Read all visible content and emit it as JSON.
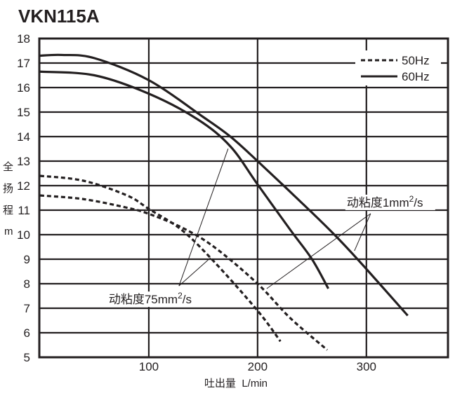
{
  "chart_data": {
    "type": "line",
    "title": "VKN115A",
    "xlabel": "吐出量  L/min",
    "ylabel": [
      "全",
      "扬",
      "程",
      "m"
    ],
    "xlim": [
      0,
      375
    ],
    "ylim": [
      5,
      18
    ],
    "xticks": [
      100,
      200,
      300
    ],
    "yticks": [
      5,
      6,
      7,
      8,
      9,
      10,
      11,
      12,
      13,
      14,
      15,
      16,
      17,
      18
    ],
    "grid": true,
    "legend": {
      "placement": "top-right",
      "entries": [
        {
          "label": "50Hz",
          "style": "dashed"
        },
        {
          "label": "60Hz",
          "style": "solid"
        }
      ]
    },
    "series": [
      {
        "name": "60Hz 1mm2/s",
        "style": "solid",
        "points": [
          [
            0,
            17.3
          ],
          [
            20,
            17.33
          ],
          [
            50,
            17.2
          ],
          [
            100,
            16.3
          ],
          [
            150,
            14.8
          ],
          [
            175,
            14.0
          ],
          [
            200,
            13.0
          ],
          [
            250,
            10.9
          ],
          [
            275,
            9.8
          ],
          [
            300,
            8.6
          ],
          [
            338,
            6.7
          ]
        ]
      },
      {
        "name": "60Hz 75mm2/s",
        "style": "solid",
        "points": [
          [
            0,
            16.65
          ],
          [
            50,
            16.5
          ],
          [
            100,
            15.75
          ],
          [
            145,
            14.7
          ],
          [
            175,
            13.6
          ],
          [
            200,
            12.05
          ],
          [
            230,
            10.2
          ],
          [
            250,
            9.0
          ],
          [
            265,
            7.8
          ]
        ]
      },
      {
        "name": "50Hz 75mm2/s",
        "style": "dashed",
        "points": [
          [
            0,
            12.4
          ],
          [
            40,
            12.2
          ],
          [
            80,
            11.6
          ],
          [
            100,
            11.05
          ],
          [
            130,
            10.2
          ],
          [
            160,
            8.9
          ],
          [
            200,
            6.9
          ],
          [
            221,
            5.65
          ]
        ]
      },
      {
        "name": "50Hz 1mm2/s",
        "style": "dashed",
        "points": [
          [
            0,
            11.6
          ],
          [
            40,
            11.45
          ],
          [
            80,
            11.1
          ],
          [
            100,
            10.85
          ],
          [
            130,
            10.3
          ],
          [
            160,
            9.5
          ],
          [
            200,
            8.0
          ],
          [
            230,
            6.6
          ],
          [
            264,
            5.3
          ]
        ]
      }
    ],
    "annotations": [
      {
        "prefix": "动粘度75mm",
        "sup": "2",
        "suffix": "/s",
        "origin": [
          127.7,
          7.91
        ],
        "targets": [
          [
            172.9,
            13.51
          ],
          [
            156.8,
            9.06
          ]
        ]
      },
      {
        "prefix": "动粘度1mm",
        "sup": "2",
        "suffix": "/s",
        "origin": [
          303.9,
          10.86
        ],
        "targets": [
          [
            208.4,
            7.8
          ],
          [
            289,
            9.34
          ]
        ]
      }
    ]
  }
}
